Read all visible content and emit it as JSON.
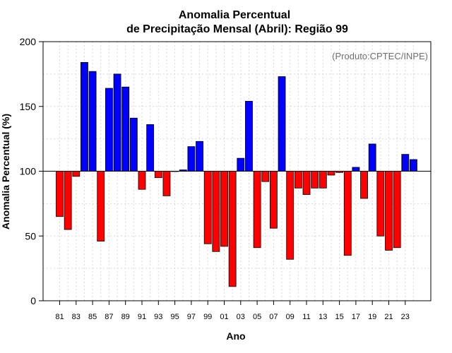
{
  "chart_data": {
    "type": "bar",
    "title": "Anomalia Percentual",
    "subtitle": "de Precipitação Mensal (Abril): Região 99",
    "xlabel": "Ano",
    "ylabel": "Anomalia Percentual (%)",
    "credit": "(Produto:CPTEC/INPE)",
    "baseline": 100,
    "ylim": [
      0,
      200
    ],
    "yticks": [
      0,
      50,
      100,
      150,
      200
    ],
    "grid": true,
    "colors": {
      "above": "#0000ff",
      "below": "#ff0000",
      "outline": "#000000"
    },
    "categories": [
      "81",
      "82",
      "83",
      "84",
      "85",
      "86",
      "87",
      "88",
      "89",
      "90",
      "91",
      "92",
      "93",
      "94",
      "95",
      "96",
      "97",
      "98",
      "99",
      "00",
      "01",
      "02",
      "03",
      "04",
      "05",
      "06",
      "07",
      "08",
      "09",
      "10",
      "11",
      "12",
      "13",
      "14",
      "15",
      "16",
      "17",
      "18",
      "19",
      "20",
      "21",
      "22",
      "23",
      "24"
    ],
    "values": [
      65,
      55,
      96,
      184,
      177,
      46,
      164,
      175,
      165,
      141,
      86,
      136,
      95,
      81,
      100,
      101,
      119,
      123,
      44,
      38,
      42,
      11,
      110,
      154,
      41,
      92,
      56,
      173,
      32,
      87,
      82,
      87,
      87,
      97,
      99,
      35,
      103,
      79,
      121,
      50,
      39,
      41,
      113,
      109
    ],
    "xtick_labels": [
      "81",
      "83",
      "85",
      "87",
      "89",
      "91",
      "93",
      "95",
      "97",
      "99",
      "01",
      "03",
      "05",
      "07",
      "09",
      "11",
      "13",
      "15",
      "17",
      "19",
      "21",
      "23"
    ]
  }
}
